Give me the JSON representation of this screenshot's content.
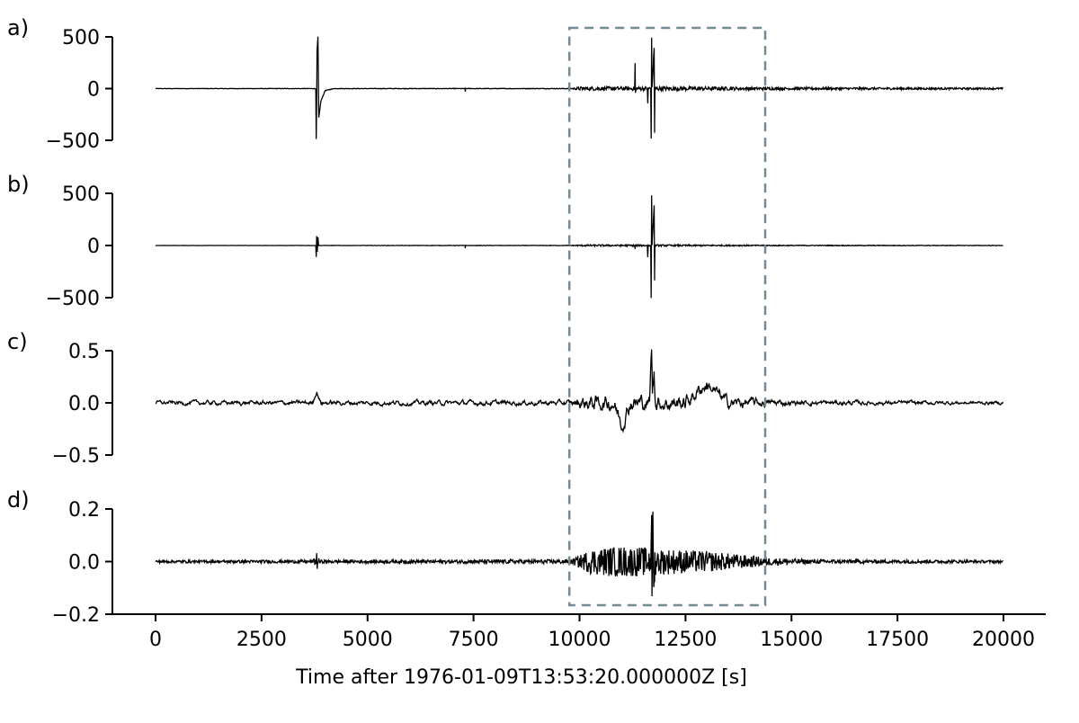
{
  "chart_data": {
    "type": "line",
    "xlabel": "Time after 1976-01-09T13:53:20.000000Z [s]",
    "xlim": [
      0,
      20000
    ],
    "xticks": [
      0,
      2500,
      5000,
      7500,
      10000,
      12500,
      15000,
      17500,
      20000
    ],
    "xtick_labels": [
      "0",
      "2500",
      "5000",
      "7500",
      "10000",
      "12500",
      "15000",
      "17500",
      "20000"
    ],
    "highlight_box": {
      "x_range": [
        9760,
        14380
      ],
      "style": "dashed",
      "color": "#738a93"
    },
    "line_color": "#000000",
    "panels": [
      {
        "label": "a)",
        "ylim": [
          -500,
          500
        ],
        "yticks": [
          -500,
          0,
          500
        ],
        "ytick_labels": [
          "−500",
          "0",
          "500"
        ],
        "events": [
          [
            3780,
            0
          ],
          [
            3790,
            -490
          ],
          [
            3810,
            360
          ],
          [
            3830,
            500
          ],
          [
            3850,
            -280
          ],
          [
            3900,
            -120
          ],
          [
            4000,
            -20
          ],
          [
            4200,
            0
          ],
          [
            7300,
            0
          ],
          [
            7305,
            -30
          ],
          [
            7310,
            0
          ],
          [
            11300,
            0
          ],
          [
            11310,
            240
          ],
          [
            11320,
            -40
          ],
          [
            11330,
            0
          ],
          [
            11600,
            0
          ],
          [
            11610,
            -150
          ],
          [
            11620,
            0
          ],
          [
            11680,
            0
          ],
          [
            11690,
            -500
          ],
          [
            11700,
            500
          ],
          [
            11710,
            0
          ],
          [
            11760,
            390
          ],
          [
            11770,
            -420
          ],
          [
            11780,
            0
          ]
        ],
        "noise": [
          [
            0,
            2
          ],
          [
            9800,
            3
          ],
          [
            10000,
            18
          ],
          [
            12000,
            20
          ],
          [
            15000,
            12
          ],
          [
            20000,
            8
          ]
        ]
      },
      {
        "label": "b)",
        "ylim": [
          -500,
          500
        ],
        "yticks": [
          -500,
          0,
          500
        ],
        "ytick_labels": [
          "−500",
          "0",
          "500"
        ],
        "events": [
          [
            3780,
            0
          ],
          [
            3790,
            -110
          ],
          [
            3800,
            90
          ],
          [
            3815,
            -60
          ],
          [
            3830,
            80
          ],
          [
            3845,
            0
          ],
          [
            7300,
            0
          ],
          [
            7305,
            -25
          ],
          [
            7310,
            0
          ],
          [
            11300,
            0
          ],
          [
            11310,
            -30
          ],
          [
            11320,
            0
          ],
          [
            11600,
            0
          ],
          [
            11610,
            -110
          ],
          [
            11620,
            0
          ],
          [
            11680,
            0
          ],
          [
            11690,
            -510
          ],
          [
            11700,
            480
          ],
          [
            11710,
            0
          ],
          [
            11760,
            380
          ],
          [
            11770,
            -330
          ],
          [
            11780,
            0
          ]
        ],
        "noise": [
          [
            0,
            1
          ],
          [
            9800,
            2
          ],
          [
            10000,
            8
          ],
          [
            12000,
            8
          ],
          [
            15000,
            4
          ],
          [
            20000,
            2
          ]
        ]
      },
      {
        "label": "c)",
        "ylim": [
          -0.5,
          0.5
        ],
        "yticks": [
          -0.5,
          0.0,
          0.5
        ],
        "ytick_labels": [
          "−0.5",
          "0.0",
          "0.5"
        ],
        "events": [
          [
            3700,
            0
          ],
          [
            3800,
            0.11
          ],
          [
            3900,
            0
          ],
          [
            10800,
            0
          ],
          [
            11000,
            -0.2
          ],
          [
            11200,
            0
          ],
          [
            11650,
            0
          ],
          [
            11700,
            0.5
          ],
          [
            11720,
            0.1
          ],
          [
            11760,
            0.3
          ],
          [
            11800,
            0
          ],
          [
            12500,
            0
          ],
          [
            13000,
            0.18
          ],
          [
            13500,
            0
          ]
        ],
        "noise": [
          [
            0,
            0.025
          ],
          [
            9800,
            0.03
          ],
          [
            10000,
            0.09
          ],
          [
            12000,
            0.1
          ],
          [
            14000,
            0.06
          ],
          [
            15000,
            0.03
          ],
          [
            20000,
            0.02
          ]
        ]
      },
      {
        "label": "d)",
        "ylim": [
          -0.2,
          0.2
        ],
        "yticks": [
          -0.2,
          0.0,
          0.2
        ],
        "ytick_labels": [
          "−0.2",
          "0.0",
          "0.2"
        ],
        "events": [
          [
            3790,
            0
          ],
          [
            3800,
            0.03
          ],
          [
            3810,
            -0.03
          ],
          [
            3820,
            0
          ],
          [
            11680,
            0
          ],
          [
            11700,
            0.2
          ],
          [
            11710,
            -0.17
          ],
          [
            11730,
            0.2
          ],
          [
            11750,
            -0.12
          ],
          [
            11780,
            0
          ]
        ],
        "noise": [
          [
            0,
            0.005
          ],
          [
            3700,
            0.006
          ],
          [
            3800,
            0.02
          ],
          [
            3900,
            0.006
          ],
          [
            9800,
            0.008
          ],
          [
            10300,
            0.05
          ],
          [
            11000,
            0.06
          ],
          [
            13000,
            0.04
          ],
          [
            14500,
            0.015
          ],
          [
            15500,
            0.008
          ],
          [
            20000,
            0.005
          ]
        ]
      }
    ]
  }
}
